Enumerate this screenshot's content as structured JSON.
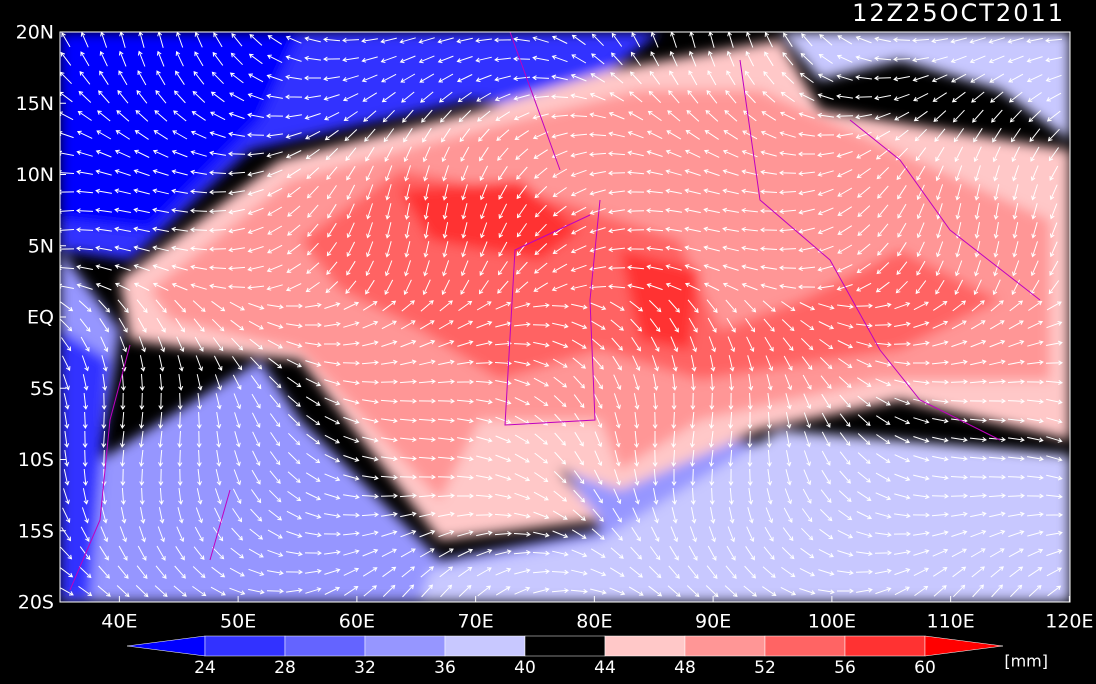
{
  "title": "12Z25OCT2011",
  "lat_labels": [
    "20N",
    "15N",
    "10N",
    "5N",
    "EQ",
    "5S",
    "10S",
    "15S",
    "20S"
  ],
  "lon_labels": [
    "40E",
    "50E",
    "60E",
    "70E",
    "80E",
    "90E",
    "100E",
    "110E",
    "120E"
  ],
  "colorbar": {
    "levels": [
      24,
      28,
      32,
      36,
      40,
      44,
      48,
      52,
      56,
      60
    ],
    "colors": [
      "#0000ff",
      "#3232ff",
      "#6464ff",
      "#9696ff",
      "#c8c8ff",
      "#000000",
      "#ffc8c8",
      "#ff9696",
      "#ff6464",
      "#ff3232",
      "#ff0000"
    ],
    "unit": "[mm]"
  }
}
